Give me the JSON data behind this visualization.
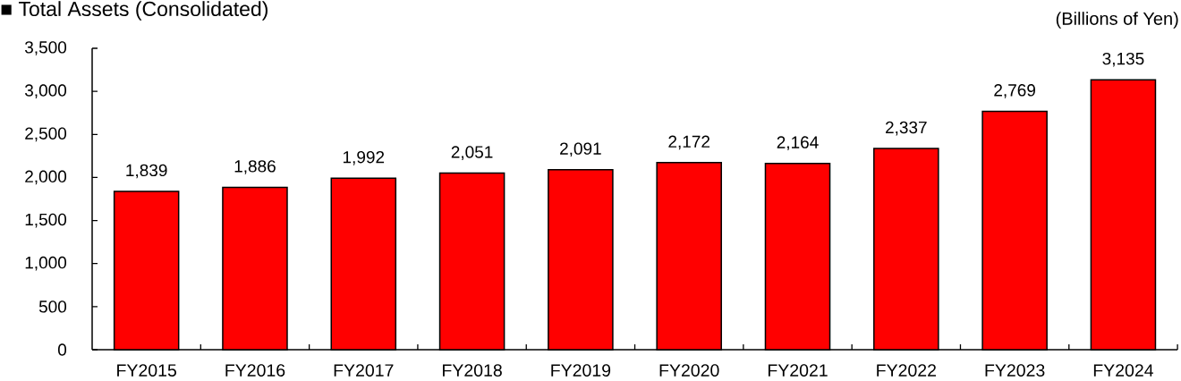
{
  "chart_data": {
    "type": "bar",
    "title": "■ Total Assets (Consolidated)",
    "ylabel": "(Billions of Yen)",
    "categories": [
      "FY2015",
      "FY2016",
      "FY2017",
      "FY2018",
      "FY2019",
      "FY2020",
      "FY2021",
      "FY2022",
      "FY2023",
      "FY2024"
    ],
    "values": [
      1839,
      1886,
      1992,
      2051,
      2091,
      2172,
      2164,
      2337,
      2769,
      3135
    ],
    "value_labels": [
      "1,839",
      "1,886",
      "1,992",
      "2,051",
      "2,091",
      "2,172",
      "2,164",
      "2,337",
      "2,769",
      "3,135"
    ],
    "color": "#ff0000",
    "ylim": [
      0,
      3500
    ],
    "yticks": [
      0,
      500,
      {
        "value": 1000,
        "label": "1,000"
      },
      {
        "value": 1500,
        "label": "1,500"
      },
      {
        "value": 2000,
        "label": "2,000"
      },
      {
        "value": 2500,
        "label": "2,500"
      },
      {
        "value": 3000,
        "label": "3,000"
      },
      {
        "value": 3500,
        "label": "3,500"
      }
    ]
  }
}
